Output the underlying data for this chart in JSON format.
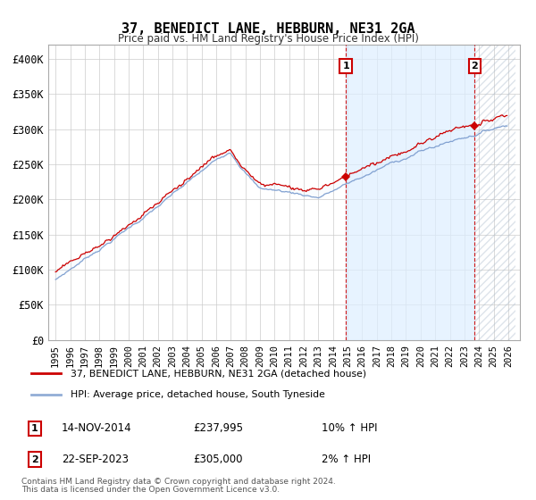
{
  "title": "37, BENEDICT LANE, HEBBURN, NE31 2GA",
  "subtitle": "Price paid vs. HM Land Registry's House Price Index (HPI)",
  "legend_line1": "37, BENEDICT LANE, HEBBURN, NE31 2GA (detached house)",
  "legend_line2": "HPI: Average price, detached house, South Tyneside",
  "annotation1_label": "1",
  "annotation1_date": "14-NOV-2014",
  "annotation1_price": "£237,995",
  "annotation1_hpi": "10% ↑ HPI",
  "annotation2_label": "2",
  "annotation2_date": "22-SEP-2023",
  "annotation2_price": "£305,000",
  "annotation2_hpi": "2% ↑ HPI",
  "footer1": "Contains HM Land Registry data © Crown copyright and database right 2024.",
  "footer2": "This data is licensed under the Open Government Licence v3.0.",
  "red_color": "#cc0000",
  "blue_color": "#7799cc",
  "shading_color": "#ddeeff",
  "grid_color": "#cccccc",
  "background_color": "#ffffff",
  "annotation_line_color": "#cc0000",
  "ylim_min": 0,
  "ylim_max": 420000,
  "yticks": [
    0,
    50000,
    100000,
    150000,
    200000,
    250000,
    300000,
    350000,
    400000
  ],
  "start_year": 1995,
  "end_year": 2026,
  "t1_year": 2014,
  "t1_month": 11,
  "t1_price": 237995,
  "t2_year": 2023,
  "t2_month": 9,
  "t2_price": 305000
}
